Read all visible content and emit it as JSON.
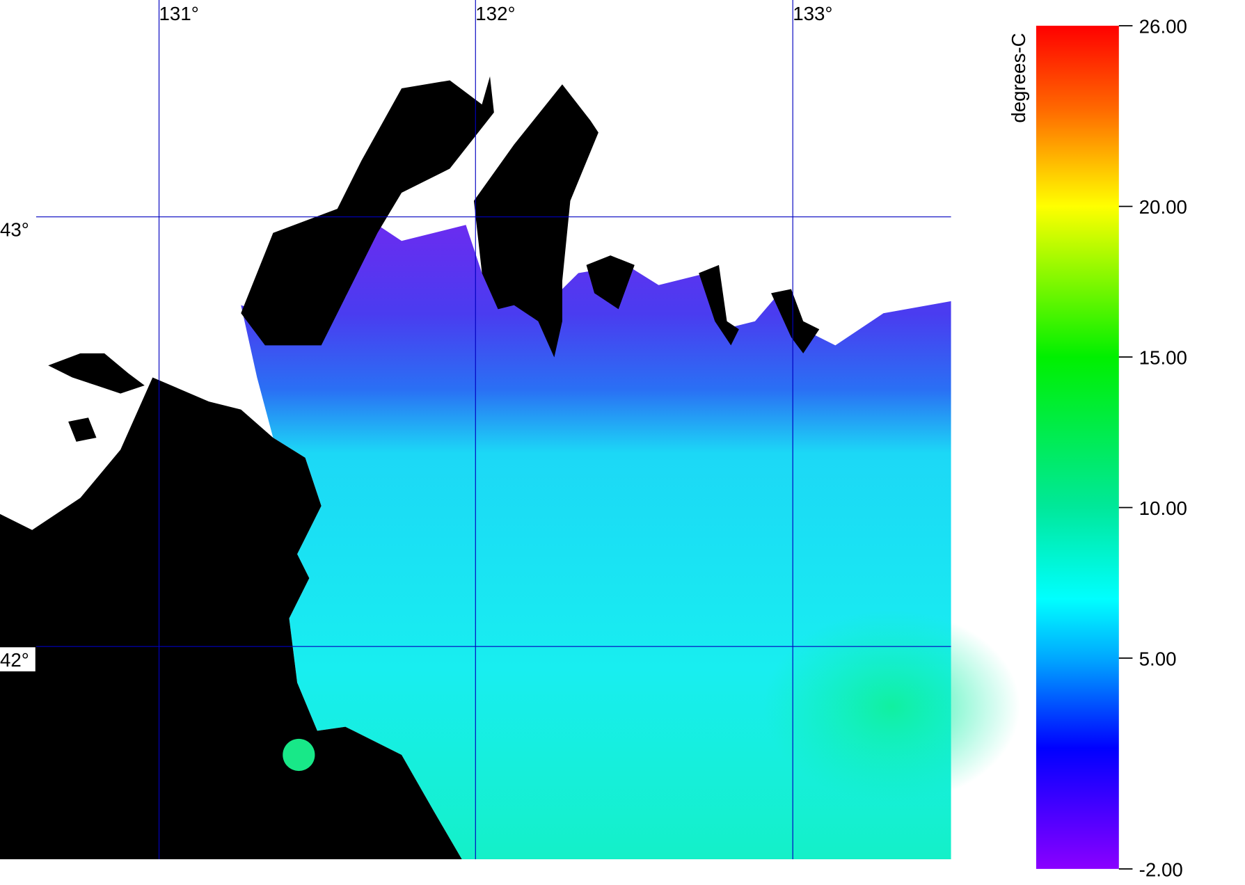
{
  "map": {
    "lon_labels": [
      "131°",
      "132°",
      "133°"
    ],
    "lat_labels": [
      "43°",
      "42°"
    ]
  },
  "colorbar": {
    "label": "degrees-C",
    "lim": [
      -2,
      26
    ],
    "ticks": [
      {
        "value": 26,
        "label": "26.00"
      },
      {
        "value": 20,
        "label": "20.00"
      },
      {
        "value": 15,
        "label": "15.00"
      },
      {
        "value": 10,
        "label": "10.00"
      },
      {
        "value": 5,
        "label": "5.00"
      },
      {
        "value": -2,
        "label": "-2.00"
      }
    ]
  }
}
